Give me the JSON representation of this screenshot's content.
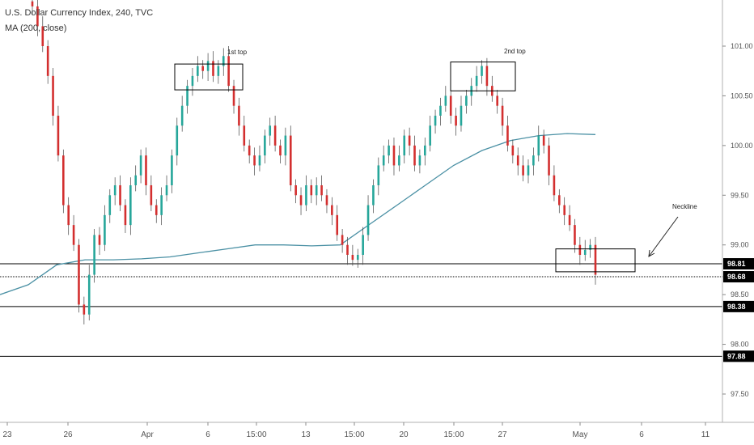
{
  "header": {
    "title": "U.S. Dollar Currency Index, 240, TVC",
    "indicator": "MA (200, close)"
  },
  "colors": {
    "up": "#26a69a",
    "down": "#d32f2f",
    "ma": "#4a90a4",
    "line": "#000000",
    "axis_bg": "#ffffff"
  },
  "chart_data": {
    "type": "candlestick",
    "ylim": [
      97.2,
      101.45
    ],
    "y_ticks": [
      "101.00",
      "100.50",
      "100.00",
      "99.50",
      "99.00",
      "98.50",
      "98.00",
      "97.50"
    ],
    "x_ticks": [
      "23",
      "26",
      "Apr",
      "6",
      "15:00",
      "13",
      "15:00",
      "20",
      "15:00",
      "27",
      "May",
      "6",
      "11"
    ],
    "horizontal_lines": [
      {
        "value": 98.81,
        "label": "98.81",
        "style": "solid"
      },
      {
        "value": 98.68,
        "label": "98.68",
        "style": "dotted"
      },
      {
        "value": 98.38,
        "label": "98.38",
        "style": "solid"
      },
      {
        "value": 97.88,
        "label": "97.88",
        "style": "solid"
      }
    ],
    "annotations": [
      {
        "text": "1st top"
      },
      {
        "text": "2nd top"
      },
      {
        "text": "Neckline"
      }
    ],
    "close_series": [
      101.4,
      101.2,
      101.0,
      100.7,
      100.3,
      99.9,
      99.4,
      99.2,
      99.0,
      98.4,
      98.3,
      98.7,
      99.1,
      99.0,
      99.3,
      99.5,
      99.6,
      99.4,
      99.2,
      99.6,
      99.7,
      99.9,
      99.6,
      99.4,
      99.3,
      99.5,
      99.6,
      99.9,
      100.2,
      100.4,
      100.6,
      100.7,
      100.8,
      100.75,
      100.85,
      100.7,
      100.8,
      100.9,
      100.6,
      100.4,
      100.2,
      100.0,
      99.9,
      99.8,
      99.9,
      100.1,
      100.2,
      100.0,
      99.9,
      100.1,
      99.6,
      99.5,
      99.4,
      99.6,
      99.5,
      99.6,
      99.5,
      99.4,
      99.3,
      99.1,
      99.0,
      98.9,
      98.85,
      98.9,
      99.1,
      99.4,
      99.6,
      99.8,
      99.9,
      100.0,
      99.8,
      99.9,
      100.1,
      100.0,
      99.8,
      99.9,
      100.0,
      100.2,
      100.3,
      100.4,
      100.5,
      100.3,
      100.2,
      100.4,
      100.5,
      100.6,
      100.7,
      100.8,
      100.6,
      100.5,
      100.4,
      100.2,
      100.0,
      99.9,
      99.8,
      99.7,
      99.8,
      99.9,
      100.1,
      100.0,
      99.7,
      99.5,
      99.4,
      99.3,
      99.2,
      99.0,
      98.9,
      98.95,
      99.0,
      98.7
    ],
    "ma_series": [
      98.5,
      98.6,
      98.8,
      98.85,
      98.85,
      98.86,
      98.88,
      98.92,
      98.96,
      99.0,
      99.0,
      98.99,
      99.0,
      99.2,
      99.4,
      99.6,
      99.8,
      99.95,
      100.05,
      100.1,
      100.12,
      100.11
    ]
  }
}
